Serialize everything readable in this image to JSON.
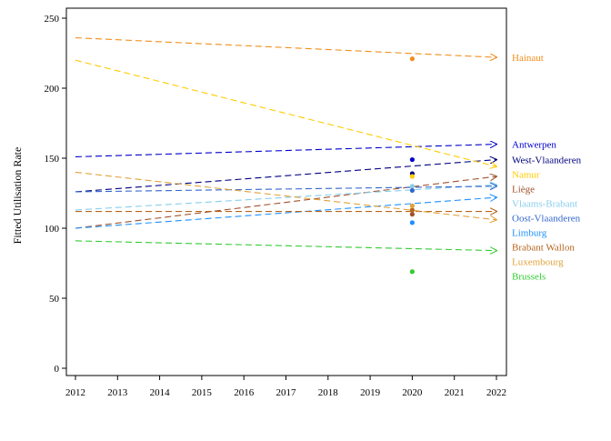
{
  "chart_data": {
    "type": "line",
    "title": "",
    "xlabel": "",
    "ylabel": "Fitted Utilisation Rate",
    "xlim": [
      2012,
      2022
    ],
    "ylim": [
      0,
      250
    ],
    "x_ticks": [
      2012,
      2013,
      2014,
      2015,
      2016,
      2017,
      2018,
      2019,
      2020,
      2021,
      2022
    ],
    "y_ticks": [
      0,
      50,
      100,
      150,
      200,
      250
    ],
    "grid": false,
    "legend": "right, labels at line ends",
    "observed_year": 2020,
    "series": [
      {
        "name": "Hainaut",
        "color": "#F28E1C",
        "line": [
          [
            2012,
            236
          ],
          [
            2022,
            222
          ]
        ],
        "observed": 221
      },
      {
        "name": "Antwerpen",
        "color": "#0000CC",
        "line": [
          [
            2012,
            151
          ],
          [
            2022,
            160
          ]
        ],
        "observed": 149
      },
      {
        "name": "West-Vlaanderen",
        "color": "#000080",
        "line": [
          [
            2012,
            126
          ],
          [
            2022,
            149
          ]
        ],
        "observed": 139
      },
      {
        "name": "Namur",
        "color": "#FFCC00",
        "line": [
          [
            2012,
            220
          ],
          [
            2022,
            144
          ]
        ],
        "observed": 137
      },
      {
        "name": "Liège",
        "color": "#A0522D",
        "line": [
          [
            2012,
            100
          ],
          [
            2022,
            137
          ]
        ],
        "observed": 110
      },
      {
        "name": "Vlaams-Brabant",
        "color": "#87CEEB",
        "line": [
          [
            2012,
            113
          ],
          [
            2022,
            131
          ]
        ],
        "observed": 130
      },
      {
        "name": "Oost-Vlaanderen",
        "color": "#3366CC",
        "line": [
          [
            2012,
            126
          ],
          [
            2022,
            130
          ]
        ],
        "observed": 127
      },
      {
        "name": "Limburg",
        "color": "#1E90FF",
        "line": [
          [
            2012,
            100
          ],
          [
            2022,
            122
          ]
        ],
        "observed": 104
      },
      {
        "name": "Brabant Wallon",
        "color": "#B5651D",
        "line": [
          [
            2012,
            112
          ],
          [
            2022,
            112
          ]
        ],
        "observed": 113
      },
      {
        "name": "Luxembourg",
        "color": "#E1A23A",
        "line": [
          [
            2012,
            140
          ],
          [
            2022,
            106
          ]
        ],
        "observed": 116
      },
      {
        "name": "Brussels",
        "color": "#33CC33",
        "line": [
          [
            2012,
            91
          ],
          [
            2022,
            84
          ]
        ],
        "observed": 69
      }
    ]
  }
}
